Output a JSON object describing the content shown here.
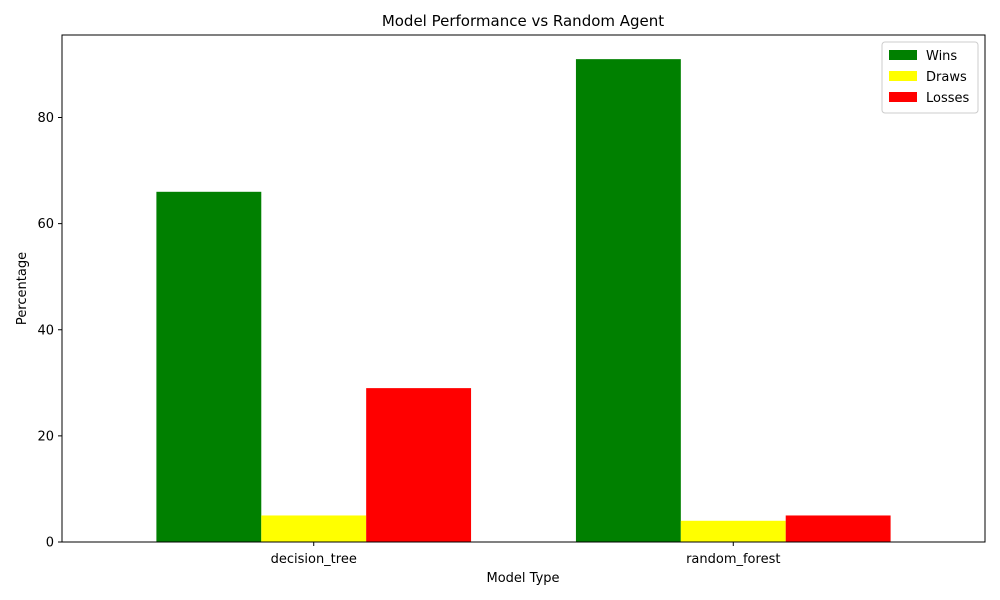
{
  "chart_data": {
    "type": "bar",
    "title": "Model Performance vs Random Agent",
    "xlabel": "Model Type",
    "ylabel": "Percentage",
    "categories": [
      "decision_tree",
      "random_forest"
    ],
    "series": [
      {
        "name": "Wins",
        "values": [
          66,
          91
        ],
        "color": "#008000"
      },
      {
        "name": "Draws",
        "values": [
          5,
          4
        ],
        "color": "#ffff00"
      },
      {
        "name": "Losses",
        "values": [
          29,
          5
        ],
        "color": "#ff0000"
      }
    ],
    "ylim": [
      0,
      95.55
    ],
    "yticks": [
      0,
      20,
      40,
      60,
      80
    ],
    "grid": false,
    "legend": "top-right"
  }
}
